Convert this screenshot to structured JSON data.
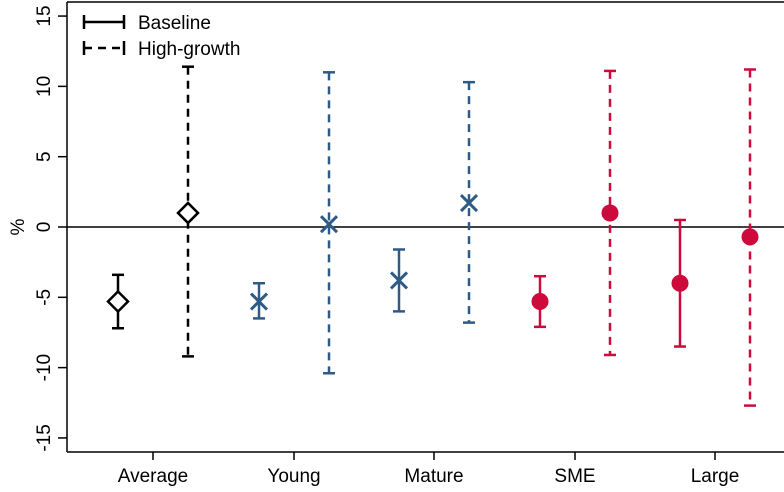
{
  "chart_data": {
    "type": "errorbar",
    "ylabel": "%",
    "ylim": [
      -16,
      16
    ],
    "y_ticks": [
      15,
      10,
      5,
      0,
      -5,
      -10,
      -15
    ],
    "y_tick_labels": [
      "15",
      "10",
      "5",
      "0",
      "-5",
      "-10",
      "-15"
    ],
    "categories": [
      "Average",
      "Young",
      "Mature",
      "SME",
      "Large"
    ],
    "legend": {
      "position": "top-left",
      "entries": [
        {
          "label": "Baseline",
          "line_style": "solid"
        },
        {
          "label": "High-growth",
          "line_style": "dashed"
        }
      ]
    },
    "reference_line_y": 0,
    "grid": false,
    "points": [
      {
        "category": "Average",
        "scenario": "Baseline",
        "estimate": -5.3,
        "lower": -7.2,
        "upper": -3.4,
        "marker": "diamond",
        "color": "#000000"
      },
      {
        "category": "Average",
        "scenario": "High-growth",
        "estimate": 1.0,
        "lower": -9.2,
        "upper": 11.4,
        "marker": "diamond",
        "color": "#000000"
      },
      {
        "category": "Young",
        "scenario": "Baseline",
        "estimate": -5.3,
        "lower": -6.5,
        "upper": -4.0,
        "marker": "x",
        "color": "#2e5b86"
      },
      {
        "category": "Young",
        "scenario": "High-growth",
        "estimate": 0.2,
        "lower": -10.4,
        "upper": 11.0,
        "marker": "x",
        "color": "#2e5b86"
      },
      {
        "category": "Mature",
        "scenario": "Baseline",
        "estimate": -3.8,
        "lower": -6.0,
        "upper": -1.6,
        "marker": "x",
        "color": "#2e5b86"
      },
      {
        "category": "Mature",
        "scenario": "High-growth",
        "estimate": 1.7,
        "lower": -6.8,
        "upper": 10.3,
        "marker": "x",
        "color": "#2e5b86"
      },
      {
        "category": "SME",
        "scenario": "Baseline",
        "estimate": -5.3,
        "lower": -7.1,
        "upper": -3.5,
        "marker": "circle",
        "color": "#cc0a3c"
      },
      {
        "category": "SME",
        "scenario": "High-growth",
        "estimate": 1.0,
        "lower": -9.1,
        "upper": 11.1,
        "marker": "circle",
        "color": "#cc0a3c"
      },
      {
        "category": "Large",
        "scenario": "Baseline",
        "estimate": -4.0,
        "lower": -8.5,
        "upper": 0.5,
        "marker": "circle",
        "color": "#cc0a3c"
      },
      {
        "category": "Large",
        "scenario": "High-growth",
        "estimate": -0.7,
        "lower": -12.7,
        "upper": 11.2,
        "marker": "circle",
        "color": "#cc0a3c"
      }
    ]
  }
}
